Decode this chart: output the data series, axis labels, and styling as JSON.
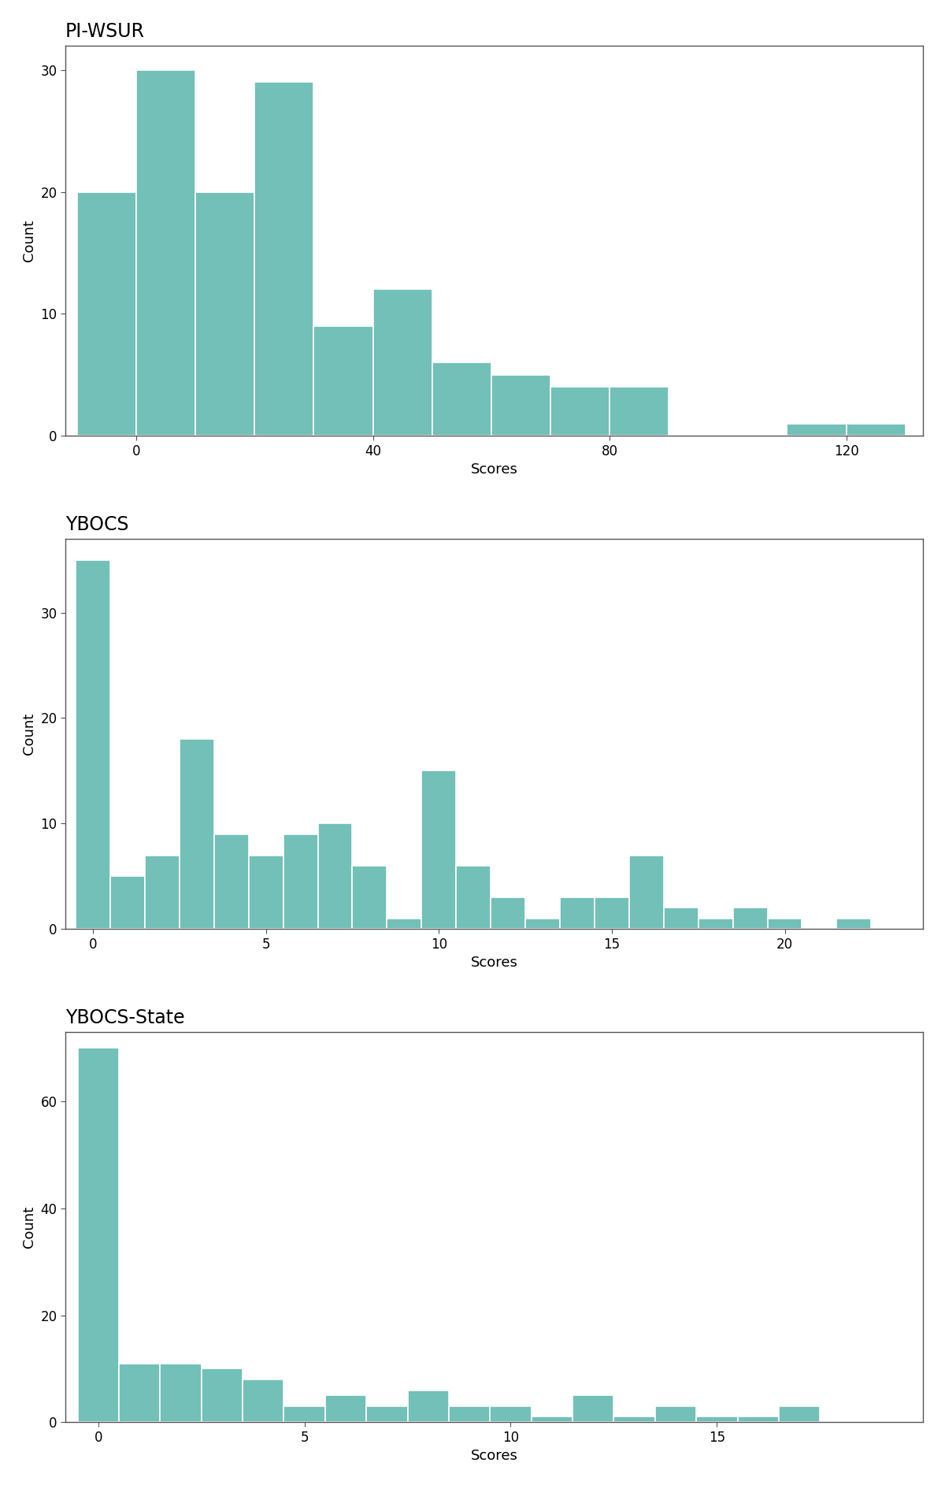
{
  "charts": [
    {
      "title": "PI-WSUR",
      "xlabel": "Scores",
      "ylabel": "Count",
      "bar_color": "#72C0B8",
      "bar_edgecolor": "white",
      "bin_edges": [
        -10,
        0,
        10,
        20,
        30,
        40,
        50,
        60,
        70,
        80,
        90,
        100,
        110,
        120,
        130
      ],
      "counts": [
        20,
        30,
        20,
        29,
        9,
        12,
        6,
        5,
        4,
        4,
        0,
        0,
        1,
        1
      ],
      "ylim": [
        0,
        32
      ],
      "yticks": [
        0,
        10,
        20,
        30
      ],
      "xticks": [
        0,
        40,
        80,
        120
      ],
      "xlim": [
        -12,
        133
      ]
    },
    {
      "title": "YBOCS",
      "xlabel": "Scores",
      "ylabel": "Count",
      "bar_color": "#72C0B8",
      "bar_edgecolor": "white",
      "bin_edges": [
        -0.5,
        0.5,
        1.5,
        2.5,
        3.5,
        4.5,
        5.5,
        6.5,
        7.5,
        8.5,
        9.5,
        10.5,
        11.5,
        12.5,
        13.5,
        14.5,
        15.5,
        16.5,
        17.5,
        18.5,
        19.5,
        20.5,
        21.5,
        22.5
      ],
      "counts": [
        35,
        5,
        7,
        18,
        9,
        7,
        9,
        10,
        6,
        1,
        15,
        6,
        3,
        1,
        3,
        3,
        7,
        2,
        1,
        2,
        1,
        0,
        1
      ],
      "ylim": [
        0,
        37
      ],
      "yticks": [
        0,
        10,
        20,
        30
      ],
      "xticks": [
        0,
        5,
        10,
        15,
        20
      ],
      "xlim": [
        -0.8,
        24
      ]
    },
    {
      "title": "YBOCS-State",
      "xlabel": "Scores",
      "ylabel": "Count",
      "bar_color": "#72C0B8",
      "bar_edgecolor": "white",
      "bin_edges": [
        -0.5,
        0.5,
        1.5,
        2.5,
        3.5,
        4.5,
        5.5,
        6.5,
        7.5,
        8.5,
        9.5,
        10.5,
        11.5,
        12.5,
        13.5,
        14.5,
        15.5,
        16.5,
        17.5,
        18.5
      ],
      "counts": [
        70,
        11,
        11,
        10,
        8,
        3,
        5,
        3,
        6,
        3,
        3,
        1,
        5,
        1,
        3,
        1,
        1,
        3,
        0
      ],
      "ylim": [
        0,
        73
      ],
      "yticks": [
        0,
        20,
        40,
        60
      ],
      "xticks": [
        0,
        5,
        10,
        15
      ],
      "xlim": [
        -0.8,
        20
      ]
    }
  ],
  "bg_color": "#ffffff",
  "plot_bg_color": "#ffffff",
  "spine_color": "#555555",
  "tick_color": "#555555",
  "title_fontsize": 17,
  "label_fontsize": 13,
  "tick_fontsize": 12,
  "fig_width": 12.0,
  "fig_height": 18.85
}
